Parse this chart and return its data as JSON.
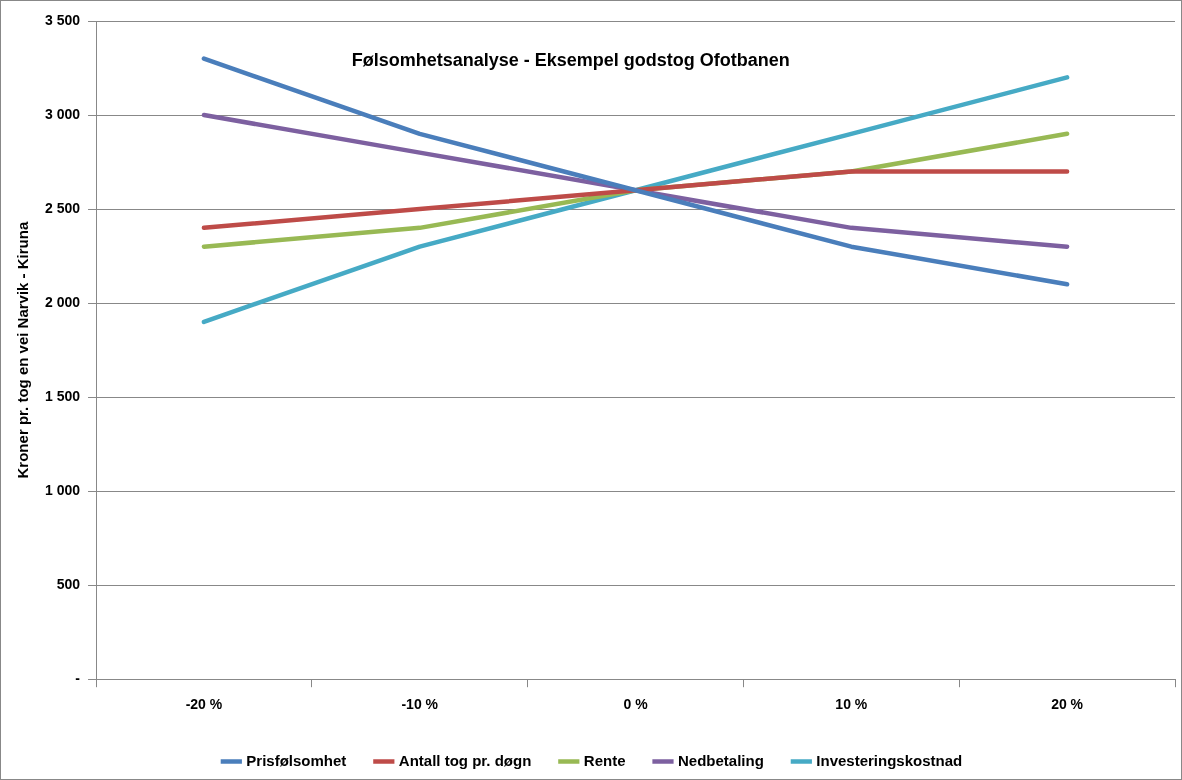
{
  "chart_data": {
    "type": "line",
    "title": "Følsomhetsanalyse - Eksempel godstog Ofotbanen",
    "ylabel": "Kroner pr. tog en vei Narvik - Kiruna",
    "categories": [
      "-20 %",
      "-10 %",
      "0 %",
      "10 %",
      "20 %"
    ],
    "series": [
      {
        "name": "Prisfølsomhet",
        "color": "#4a7ebb",
        "values": [
          3300,
          2900,
          2600,
          2300,
          2100
        ]
      },
      {
        "name": "Antall tog pr. døgn",
        "color": "#be4b48",
        "values": [
          2400,
          2500,
          2600,
          2700,
          2700
        ]
      },
      {
        "name": "Rente",
        "color": "#98b954",
        "values": [
          2300,
          2400,
          2600,
          2700,
          2900
        ]
      },
      {
        "name": "Nedbetaling",
        "color": "#7d60a0",
        "values": [
          3000,
          2800,
          2600,
          2400,
          2300
        ]
      },
      {
        "name": "Investeringskostnad",
        "color": "#46aac5",
        "values": [
          1900,
          2300,
          2600,
          2900,
          3200
        ]
      }
    ],
    "ylim": [
      0,
      3500
    ],
    "yticks": [
      {
        "value": 0,
        "label": "-"
      },
      500,
      {
        "value": 1000,
        "label": "1 000"
      },
      {
        "value": 1500,
        "label": "1 500"
      },
      {
        "value": 2000,
        "label": "2 000"
      },
      {
        "value": 2500,
        "label": "2 500"
      },
      {
        "value": 3000,
        "label": "3 000"
      },
      {
        "value": 3500,
        "label": "3 500"
      }
    ],
    "grid": "y",
    "legend": "bottom",
    "marker": "none",
    "line_style": "solid"
  }
}
